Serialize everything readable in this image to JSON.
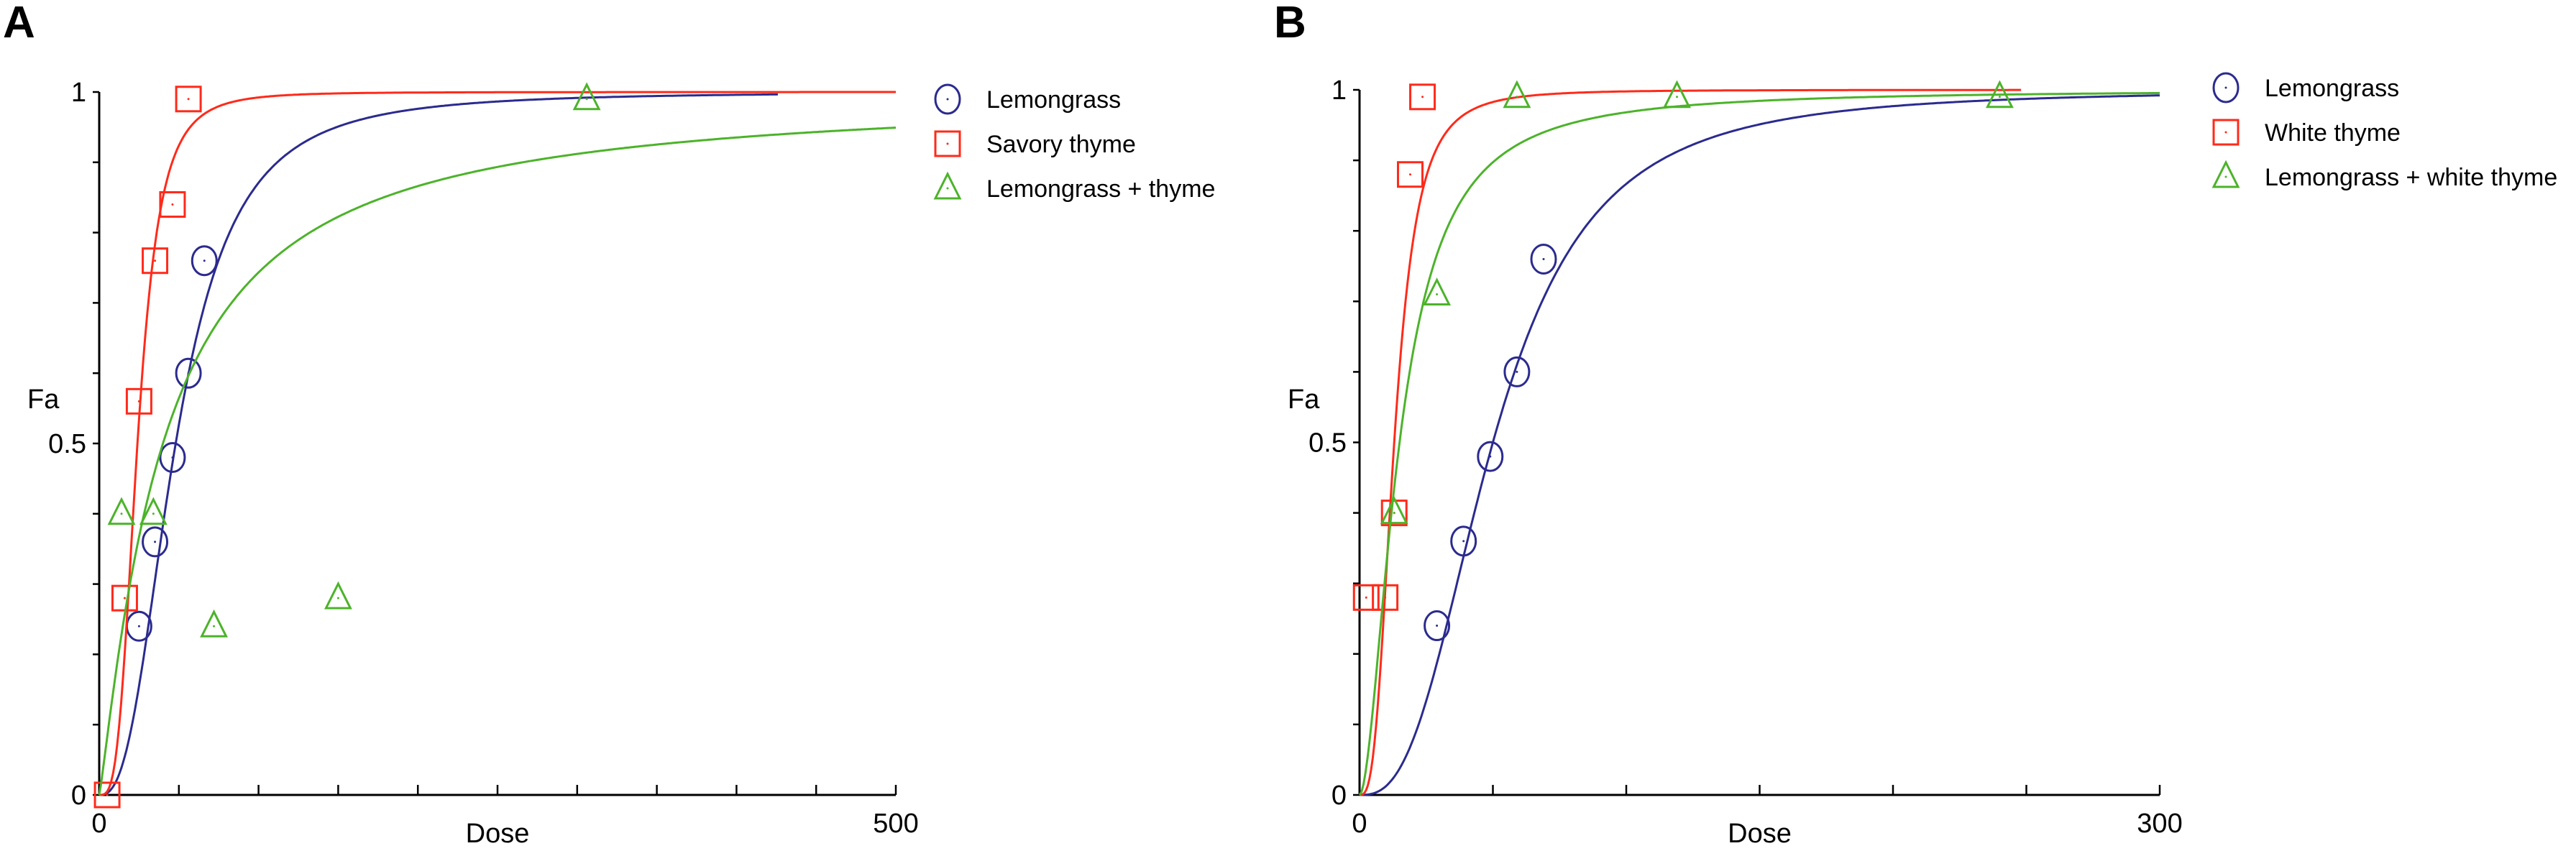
{
  "chart_data": [
    {
      "type": "scatter",
      "panel": "A",
      "xlabel": "Dose",
      "ylabel": "Fa",
      "xlim": [
        0,
        500
      ],
      "ylim": [
        0,
        1
      ],
      "xtick_labels": [
        "0",
        "500"
      ],
      "ytick_labels": [
        "0",
        "0.5",
        "1"
      ],
      "x_minor_step": 50,
      "y_minor_step": 0.1,
      "grid": false,
      "legend_position": "top-right",
      "series": [
        {
          "name": "Lemongrass",
          "color": "#2b2b8f",
          "marker": "circle",
          "points": [
            [
              25,
              0.24
            ],
            [
              35,
              0.36
            ],
            [
              46,
              0.48
            ],
            [
              56,
              0.6
            ],
            [
              66,
              0.76
            ]
          ],
          "curve": {
            "Dm": 48,
            "m": 2.6,
            "xmax": 426
          }
        },
        {
          "name": "Savory thyme",
          "color": "#ff2a1a",
          "marker": "square",
          "points": [
            [
              5,
              0.0
            ],
            [
              16,
              0.28
            ],
            [
              25,
              0.56
            ],
            [
              35,
              0.76
            ],
            [
              46,
              0.84
            ],
            [
              56,
              0.99
            ]
          ],
          "curve": {
            "Dm": 24,
            "m": 3.4,
            "xmax": 500
          }
        },
        {
          "name": "Lemongrass + thyme",
          "color": "#4cb32a",
          "marker": "triangle",
          "points": [
            [
              14,
              0.4
            ],
            [
              34,
              0.4
            ],
            [
              72,
              0.24
            ],
            [
              150,
              0.28
            ],
            [
              306,
              0.99
            ]
          ],
          "curve": {
            "Dm": 40,
            "m": 1.16,
            "xmax": 500
          }
        }
      ]
    },
    {
      "type": "scatter",
      "panel": "B",
      "xlabel": "Dose",
      "ylabel": "Fa",
      "xlim": [
        0,
        300
      ],
      "ylim": [
        0,
        1
      ],
      "xtick_labels": [
        "0",
        "300"
      ],
      "ytick_labels": [
        "0",
        "0.5",
        "1"
      ],
      "x_minor_step": 50,
      "y_minor_step": 0.1,
      "grid": false,
      "legend_position": "top-right",
      "series": [
        {
          "name": "Lemongrass",
          "color": "#2b2b8f",
          "marker": "circle",
          "points": [
            [
              29,
              0.24
            ],
            [
              39,
              0.36
            ],
            [
              49,
              0.48
            ],
            [
              59,
              0.6
            ],
            [
              69,
              0.76
            ]
          ],
          "curve": {
            "Dm": 50,
            "m": 2.7,
            "xmax": 300
          }
        },
        {
          "name": "White thyme",
          "color": "#ff2a1a",
          "marker": "square",
          "points": [
            [
              2.5,
              0.28
            ],
            [
              9.6,
              0.28
            ],
            [
              13,
              0.4
            ],
            [
              19,
              0.88
            ],
            [
              23.6,
              0.99
            ]
          ],
          "curve": {
            "Dm": 13,
            "m": 3.0,
            "xmax": 248
          }
        },
        {
          "name": "Lemongrass + white thyme",
          "color": "#4cb32a",
          "marker": "triangle",
          "points": [
            [
              13,
              0.4
            ],
            [
              29,
              0.71
            ],
            [
              59,
              0.99
            ],
            [
              119,
              0.99
            ],
            [
              240,
              0.99
            ]
          ],
          "curve": {
            "Dm": 15,
            "m": 1.8,
            "xmax": 300
          }
        }
      ]
    }
  ]
}
